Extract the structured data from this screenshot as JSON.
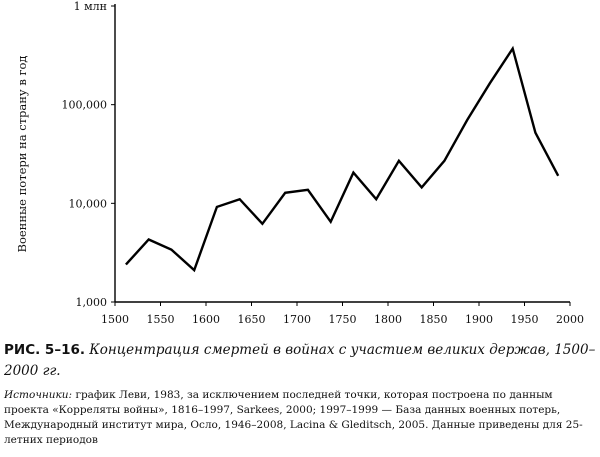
{
  "chart_data": {
    "type": "line",
    "ylabel": "Военные потери на страну в год",
    "xlabel": "",
    "yscale": "log",
    "xlim": [
      1500,
      2000
    ],
    "ylim": [
      1000,
      1000000
    ],
    "x_ticks": [
      1500,
      1550,
      1600,
      1650,
      1700,
      1750,
      1800,
      1850,
      1900,
      1950,
      2000
    ],
    "y_ticks": [
      {
        "value": 1000,
        "label": "1,000"
      },
      {
        "value": 10000,
        "label": "10,000"
      },
      {
        "value": 100000,
        "label": "100,000"
      },
      {
        "value": 1000000,
        "label": "1 млн"
      }
    ],
    "grid": false,
    "legend": "none",
    "line_color": "#000000",
    "series": [
      {
        "x": [
          1512,
          1537,
          1562,
          1587,
          1612,
          1637,
          1662,
          1687,
          1712,
          1737,
          1762,
          1787,
          1812,
          1837,
          1862,
          1887,
          1912,
          1937,
          1962,
          1987
        ],
        "y": [
          2400,
          4300,
          3400,
          2100,
          9200,
          11000,
          6200,
          12800,
          13700,
          6500,
          20500,
          11000,
          27000,
          14500,
          27000,
          70000,
          165000,
          370000,
          52000,
          19000
        ]
      }
    ]
  },
  "caption": {
    "figure_label": "РИС. 5–16.",
    "figure_title": "Концентрация смертей в войнах с участием великих держав, 1500–2000 гг.",
    "sources_label": "Источники:",
    "sources_text": "график Леви, 1983, за исключением последней точки, которая построена по данным проекта «Корреляты войны», 1816–1997, Sarkees, 2000; 1997–1999 — База данных военных потерь, Международный институт мира, Осло, 1946–2008, Lacina & Gleditsch, 2005. Данные приведены для 25-летних периодов"
  }
}
